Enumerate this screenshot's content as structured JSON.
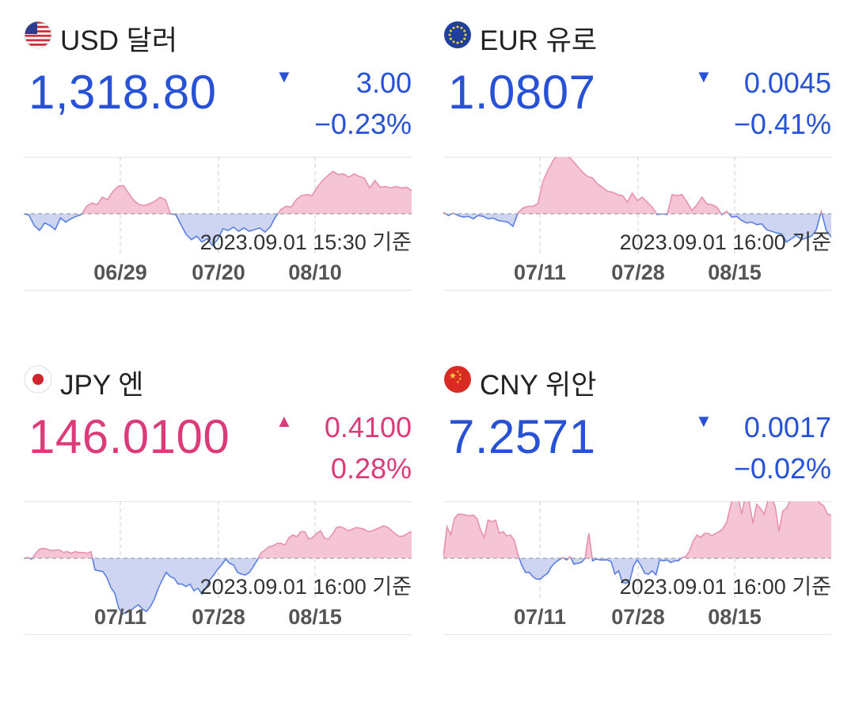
{
  "cards": [
    {
      "code_label": "USD 달러",
      "flag": "us-flag-icon",
      "price": "1,318.80",
      "direction": "down",
      "change": "3.00",
      "percent": "−0.23%",
      "timestamp": "2023.09.01 15:30 기준",
      "color": "#2852d6"
    },
    {
      "code_label": "EUR 유로",
      "flag": "eu-flag-icon",
      "price": "1.0807",
      "direction": "down",
      "change": "0.0045",
      "percent": "−0.41%",
      "timestamp": "2023.09.01 16:00 기준",
      "color": "#2852d6"
    },
    {
      "code_label": "JPY 엔",
      "flag": "jp-flag-icon",
      "price": "146.0100",
      "direction": "up",
      "change": "0.4100",
      "percent": "0.28%",
      "timestamp": "2023.09.01 16:00 기준",
      "color": "#dc3a78"
    },
    {
      "code_label": "CNY 위안",
      "flag": "cn-flag-icon",
      "price": "7.2571",
      "direction": "down",
      "change": "0.0017",
      "percent": "−0.02%",
      "timestamp": "2023.09.01 16:00 기준",
      "color": "#2852d6"
    }
  ],
  "chart_data": [
    {
      "type": "area",
      "title": "",
      "baseline_style": "dashed",
      "x_tick_labels": [
        "06/29",
        "07/20",
        "08/10"
      ],
      "values": [
        0,
        -1.5,
        -14,
        -20,
        -11,
        -14,
        -19,
        -5,
        -10,
        -6,
        -3,
        -1,
        9,
        13,
        11,
        20,
        17,
        27,
        33,
        34,
        25,
        16,
        11,
        10,
        12,
        15,
        20,
        17,
        0,
        -1,
        -13,
        -25,
        -31,
        -27,
        -34,
        -30,
        -38,
        -31,
        -18,
        -20,
        -16,
        -21,
        -17,
        -21,
        -19,
        -17,
        -22,
        -16,
        -4,
        5,
        9,
        8,
        17,
        22,
        23,
        22,
        32,
        40,
        46,
        51,
        47,
        48,
        44,
        48,
        45,
        43,
        31,
        40,
        32,
        33,
        31,
        33,
        31,
        32,
        28
      ],
      "colors": {
        "above": "#f5c5d6",
        "above_line": "#e890b0",
        "below": "#cdd5f2",
        "below_line": "#5b7fe0"
      }
    },
    {
      "type": "area",
      "title": "",
      "baseline_style": "dashed",
      "x_tick_labels": [
        "07/11",
        "07/28",
        "08/15"
      ],
      "values": [
        2,
        -2,
        1,
        -2,
        -4,
        -3,
        -6,
        -2,
        -3,
        -6,
        -5,
        -8,
        -9,
        -10,
        -15,
        1,
        7,
        9,
        9,
        12,
        38,
        52,
        63,
        72,
        72,
        70,
        64,
        57,
        50,
        45,
        43,
        36,
        32,
        27,
        26,
        23,
        22,
        14,
        25,
        16,
        20,
        14,
        8,
        -1,
        0,
        -1,
        23,
        22,
        23,
        14,
        4,
        11,
        20,
        12,
        11,
        8,
        -1,
        3,
        -4,
        -3,
        -8,
        -11,
        -10,
        -13,
        -12,
        -19,
        -21,
        -23,
        -24,
        -34,
        -30,
        -26,
        -31,
        -29,
        -27,
        -19,
        3,
        -20,
        -28
      ],
      "colors": {
        "above": "#f5c5d6",
        "above_line": "#e890b0",
        "below": "#cdd5f2",
        "below_line": "#5b7fe0"
      }
    },
    {
      "type": "area",
      "title": "",
      "baseline_style": "dashed",
      "x_tick_labels": [
        "07/11",
        "07/28",
        "08/15"
      ],
      "values": [
        0,
        1,
        -1,
        6,
        11,
        12,
        11,
        9,
        10,
        10,
        7,
        8,
        6,
        8,
        7,
        7,
        6,
        8,
        -14,
        -15,
        -16,
        -23,
        -35,
        -42,
        -60,
        -67,
        -65,
        -63,
        -59,
        -56,
        -61,
        -64,
        -58,
        -49,
        -36,
        -26,
        -17,
        -22,
        -24,
        -31,
        -31,
        -34,
        -31,
        -39,
        -36,
        -43,
        -36,
        -26,
        -20,
        -13,
        -8,
        -1,
        -6,
        -8,
        -17,
        -19,
        -20,
        -17,
        -10,
        -2,
        7,
        10,
        14,
        15,
        18,
        18,
        16,
        25,
        28,
        26,
        32,
        32,
        23,
        25,
        30,
        33,
        24,
        23,
        29,
        37,
        38,
        36,
        33,
        35,
        37,
        36,
        35,
        32,
        33,
        35,
        37,
        39,
        37,
        33,
        29,
        26,
        27,
        30,
        32
      ],
      "colors": {
        "above": "#f5c5d6",
        "above_line": "#e890b0",
        "below": "#cdd5f2",
        "below_line": "#5b7fe0"
      }
    },
    {
      "type": "area",
      "title": "",
      "baseline_style": "dashed",
      "x_tick_labels": [
        "07/11",
        "07/28",
        "08/15"
      ],
      "values": [
        2,
        38,
        28,
        48,
        53,
        53,
        52,
        51,
        52,
        48,
        34,
        25,
        46,
        44,
        46,
        30,
        32,
        27,
        28,
        22,
        5,
        -8,
        -17,
        -17,
        -22,
        -25,
        -25,
        -21,
        -18,
        -10,
        -5,
        -2,
        1,
        -2,
        2,
        -7,
        -6,
        -5,
        0,
        30,
        -3,
        -1,
        -2,
        -2,
        -2,
        -4,
        -19,
        -15,
        -29,
        -30,
        -27,
        -9,
        -2,
        -9,
        -18,
        -19,
        -15,
        -20,
        -2,
        -3,
        -2,
        -5,
        -3,
        -3,
        1,
        2,
        9,
        21,
        28,
        25,
        30,
        30,
        27,
        30,
        32,
        36,
        44,
        63,
        80,
        75,
        53,
        76,
        68,
        42,
        65,
        60,
        53,
        69,
        73,
        62,
        32,
        57,
        60,
        70,
        72,
        72,
        74,
        70,
        71,
        74,
        72,
        66,
        63,
        53,
        52
      ],
      "colors": {
        "above": "#f5c5d6",
        "above_line": "#e890b0",
        "below": "#cdd5f2",
        "below_line": "#5b7fe0"
      }
    }
  ]
}
